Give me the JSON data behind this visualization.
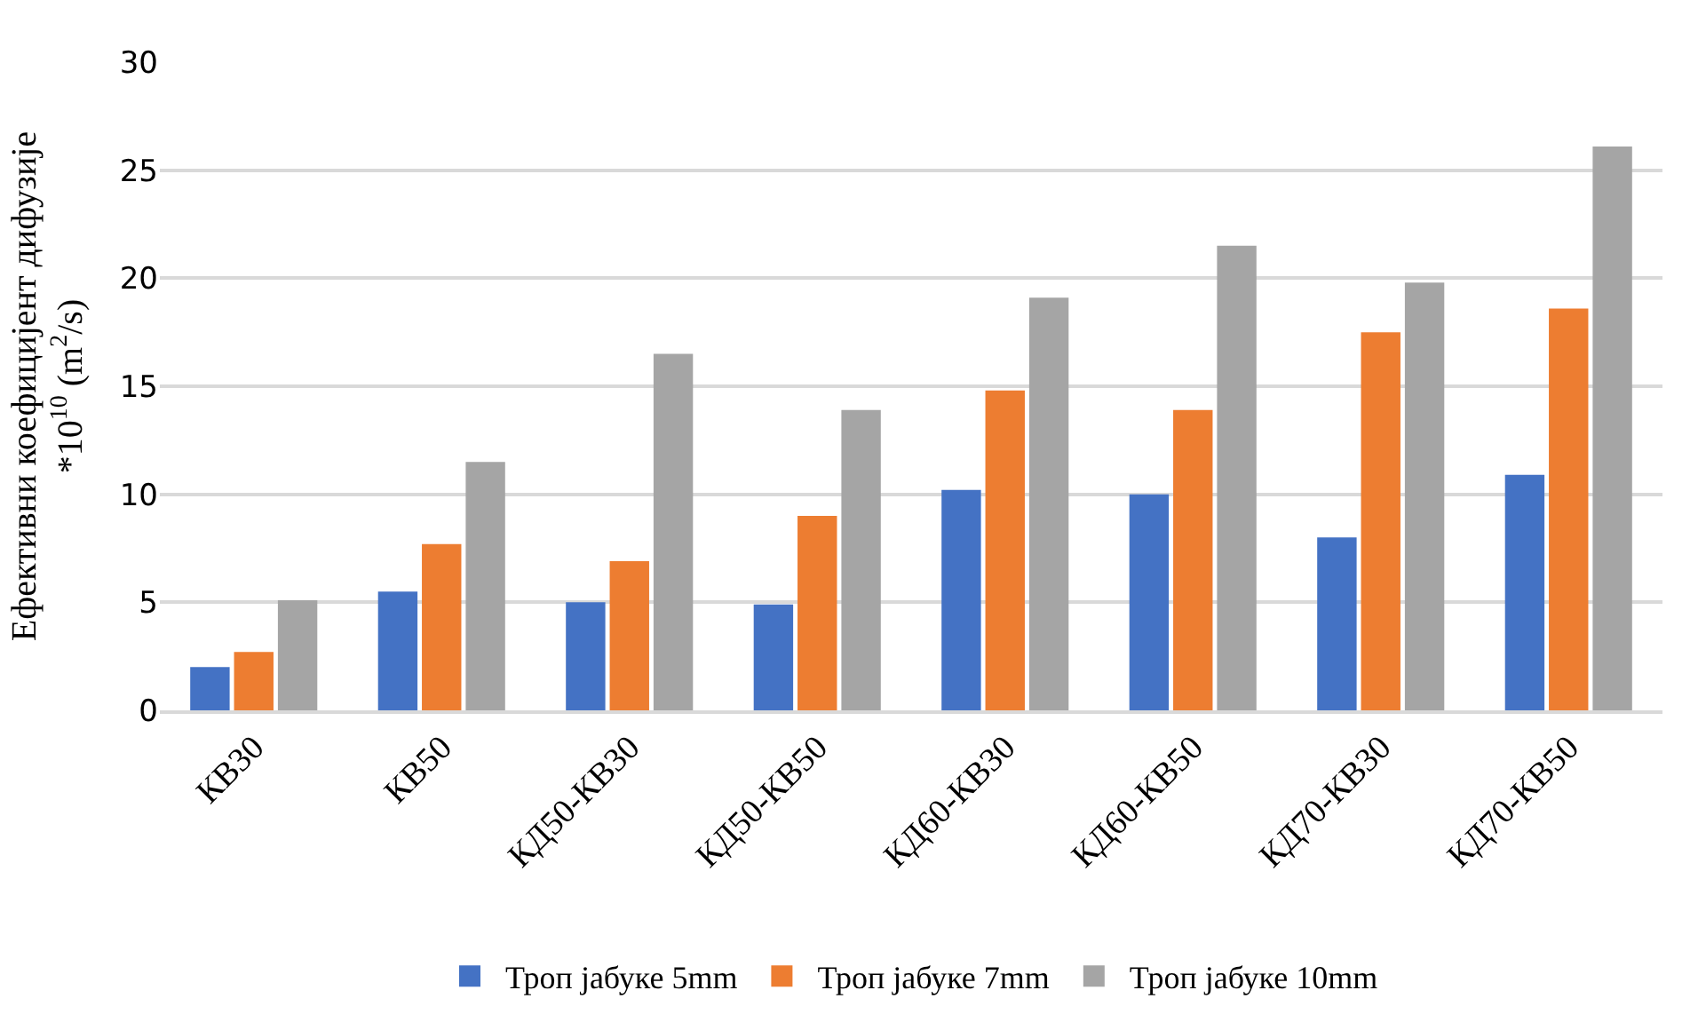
{
  "chart_data": {
    "type": "bar",
    "ylabel": "Ефективни коефицијент дифузије\n*10$^{10}$ (m$^{2}$/s)",
    "categories": [
      "КВ30",
      "КВ50",
      "КД50-КВ30",
      "КД50-КВ50",
      "КД60-КВ30",
      "КД60-КВ50",
      "КД70-КВ30",
      "КД70-КВ50"
    ],
    "series": [
      {
        "name": "Троп јабуке 5mm",
        "color": "#4472c4",
        "values": [
          2.0,
          5.5,
          5.0,
          4.9,
          10.2,
          10.0,
          8.0,
          10.9
        ]
      },
      {
        "name": "Троп јабуке 7mm",
        "color": "#ed7d31",
        "values": [
          2.7,
          7.7,
          6.9,
          9.0,
          14.8,
          13.9,
          17.5,
          18.6
        ]
      },
      {
        "name": "Троп јабуке 10mm",
        "color": "#a5a5a5",
        "values": [
          5.1,
          11.5,
          16.5,
          13.9,
          19.1,
          21.5,
          19.8,
          26.1
        ]
      }
    ],
    "ylim": [
      0,
      30
    ],
    "yticks": [
      0,
      5,
      10,
      15,
      20,
      25,
      30
    ],
    "grid": "y",
    "legend": "bottom"
  }
}
